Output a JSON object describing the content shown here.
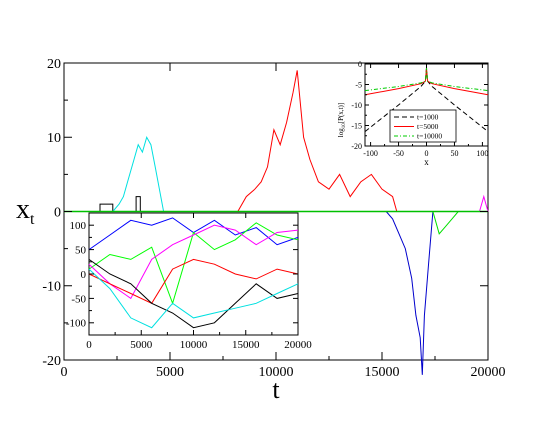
{
  "chart_data": [
    {
      "id": "main",
      "type": "line",
      "xlabel": "t",
      "ylabel": "x",
      "ylabel_sub": "t",
      "xlim": [
        0,
        20000
      ],
      "ylim": [
        -20,
        20
      ],
      "xticks": [
        0,
        5000,
        10000,
        15000,
        20000
      ],
      "yticks": [
        -20,
        -10,
        0,
        10,
        20
      ],
      "xtick_labels": [
        "0",
        "5000",
        "10000",
        "15000",
        "20000"
      ],
      "ytick_labels": [
        "-20",
        "-10",
        "0",
        "10",
        "20"
      ],
      "grid": false,
      "legend": "none",
      "baseline": {
        "y": 0,
        "color": "#00c000"
      },
      "series": [
        {
          "color": "#000000",
          "x": [
            1700,
            1700,
            2300,
            2300,
            3400,
            3400,
            3600,
            3600
          ],
          "y": [
            0,
            1,
            1,
            0,
            0,
            2,
            2,
            0
          ]
        },
        {
          "color": "#00e0e0",
          "x": [
            2300,
            2600,
            2800,
            3000,
            3300,
            3500,
            3700,
            3900,
            4100,
            4300,
            4500,
            4700
          ],
          "y": [
            0,
            1,
            2,
            4,
            7,
            9,
            8,
            10,
            9,
            6,
            3,
            0
          ]
        },
        {
          "color": "#ff0000",
          "x": [
            8200,
            8600,
            9000,
            9300,
            9600,
            9900,
            10200,
            10500,
            10800,
            11000,
            11300,
            11600,
            12000,
            12500,
            13000,
            13500,
            14000,
            14500,
            15000,
            15500,
            15700
          ],
          "y": [
            0,
            2,
            3,
            4,
            6,
            11,
            9,
            12,
            16,
            19,
            10,
            7,
            4,
            3,
            5,
            2,
            4,
            5,
            3,
            2,
            0
          ]
        },
        {
          "color": "#0000cc",
          "x": [
            15200,
            15500,
            15800,
            16100,
            16400,
            16600,
            16800,
            16900,
            17000,
            17200,
            17400
          ],
          "y": [
            0,
            -1,
            -3,
            -5,
            -9,
            -14,
            -17,
            -22,
            -14,
            -7,
            0
          ]
        },
        {
          "color": "#00e000",
          "x": [
            17400,
            17700,
            18000,
            18300,
            18600
          ],
          "y": [
            0,
            -3,
            -2,
            -1,
            0
          ]
        },
        {
          "color": "#ff00ff",
          "x": [
            19600,
            19800,
            19900,
            20000
          ],
          "y": [
            0,
            2,
            1,
            0
          ]
        }
      ]
    },
    {
      "id": "inset-trajectories",
      "type": "line",
      "xlim": [
        0,
        20000
      ],
      "ylim": [
        -125,
        125
      ],
      "xticks": [
        0,
        5000,
        10000,
        15000,
        20000
      ],
      "yticks": [
        -100,
        -50,
        0,
        50,
        100
      ],
      "xtick_labels": [
        "0",
        "5000",
        "10000",
        "15000",
        "20000"
      ],
      "ytick_labels": [
        "-100",
        "-50",
        "0",
        "50",
        "100"
      ],
      "grid": false,
      "legend": "none",
      "series": [
        {
          "color": "#0000ff",
          "x": [
            0,
            2000,
            4000,
            6000,
            8000,
            10000,
            12000,
            14000,
            16000,
            18000,
            20000
          ],
          "y": [
            50,
            80,
            110,
            100,
            115,
            85,
            110,
            80,
            95,
            60,
            75
          ]
        },
        {
          "color": "#00ff00",
          "x": [
            0,
            2000,
            4000,
            6000,
            8000,
            10000,
            12000,
            14000,
            16000,
            18000,
            20000
          ],
          "y": [
            10,
            40,
            30,
            55,
            -60,
            85,
            50,
            70,
            105,
            80,
            70
          ]
        },
        {
          "color": "#ff00ff",
          "x": [
            0,
            2000,
            4000,
            6000,
            8000,
            10000,
            12000,
            14000,
            16000,
            18000,
            20000
          ],
          "y": [
            20,
            -20,
            -50,
            30,
            60,
            80,
            100,
            90,
            60,
            85,
            90
          ]
        },
        {
          "color": "#ff0000",
          "x": [
            0,
            2000,
            4000,
            6000,
            8000,
            10000,
            12000,
            14000,
            16000,
            18000,
            20000
          ],
          "y": [
            0,
            -20,
            -40,
            -60,
            10,
            30,
            20,
            0,
            -10,
            10,
            0
          ]
        },
        {
          "color": "#000000",
          "x": [
            0,
            2000,
            4000,
            6000,
            8000,
            10000,
            12000,
            14000,
            16000,
            18000,
            20000
          ],
          "y": [
            30,
            0,
            -20,
            -60,
            -80,
            -110,
            -100,
            -60,
            -20,
            -50,
            -40
          ]
        },
        {
          "color": "#00e0e0",
          "x": [
            0,
            2000,
            4000,
            6000,
            8000,
            10000,
            12000,
            14000,
            16000,
            18000,
            20000
          ],
          "y": [
            10,
            -30,
            -90,
            -110,
            -60,
            -90,
            -80,
            -70,
            -60,
            -40,
            -20
          ]
        }
      ]
    },
    {
      "id": "inset-distribution",
      "type": "line",
      "xlabel": "x",
      "ylabel": "log",
      "ylabel_sub": "10",
      "ylabel_rest": "[P(x,t)]",
      "xlim": [
        -110,
        110
      ],
      "ylim": [
        -20,
        0
      ],
      "xticks": [
        -100,
        -50,
        0,
        50,
        100
      ],
      "yticks": [
        -20,
        -15,
        -10,
        -5,
        0
      ],
      "xtick_labels": [
        "-100",
        "-50",
        "0",
        "50",
        "100"
      ],
      "ytick_labels": [
        "-20",
        "-15",
        "-10",
        "-5",
        "0"
      ],
      "grid": false,
      "legend": "bottom-center",
      "series": [
        {
          "name": "t=1000",
          "color": "#000000",
          "dash": "5,3",
          "x": [
            -110,
            -50,
            -10,
            -2,
            0,
            2,
            10,
            50,
            110
          ],
          "y": [
            -16.5,
            -10,
            -5.5,
            -4.2,
            -1,
            -4.2,
            -5.5,
            -10,
            -16.5
          ]
        },
        {
          "name": "t=5000",
          "color": "#ff0000",
          "dash": "",
          "x": [
            -110,
            -50,
            -10,
            -2,
            0,
            2,
            10,
            50,
            110
          ],
          "y": [
            -7.5,
            -6,
            -4.8,
            -4.2,
            -1,
            -4.2,
            -4.8,
            -6,
            -7.5
          ]
        },
        {
          "name": "t=10000",
          "color": "#00cc00",
          "dash": "4,2,1,2",
          "x": [
            -110,
            -50,
            -10,
            -2,
            0,
            2,
            10,
            50,
            110
          ],
          "y": [
            -6.5,
            -5.5,
            -4.6,
            -4.2,
            -1,
            -4.2,
            -4.6,
            -5.5,
            -6.5
          ]
        }
      ]
    }
  ]
}
